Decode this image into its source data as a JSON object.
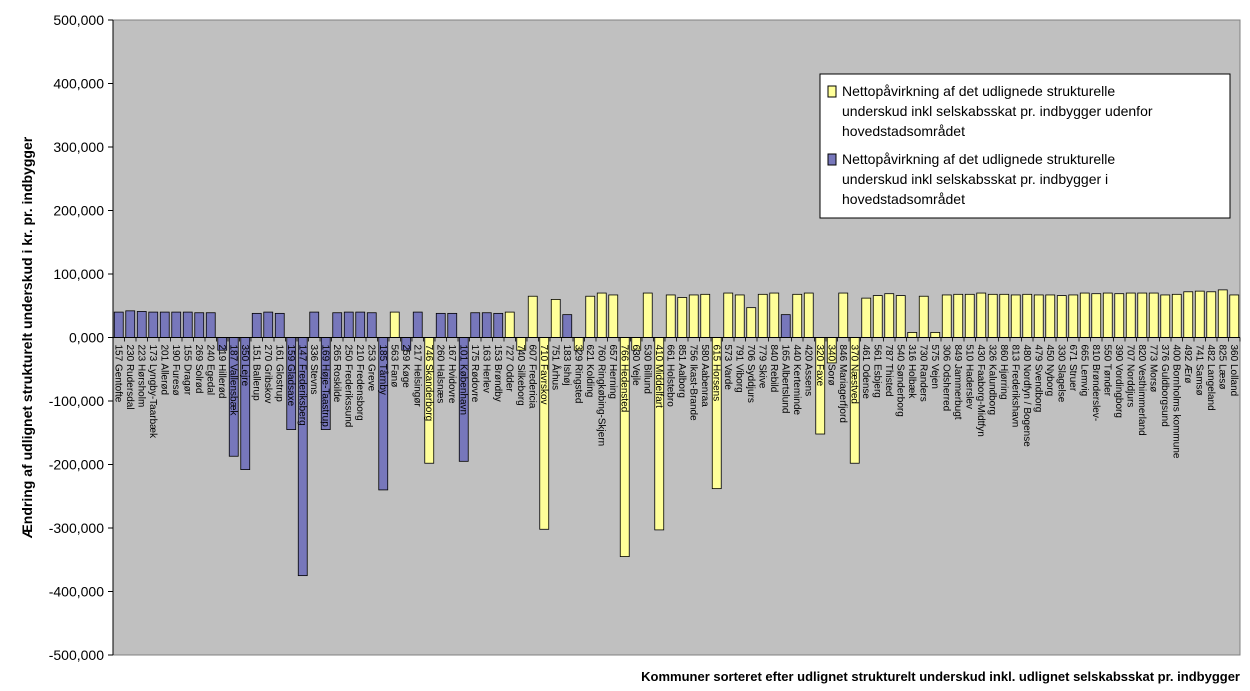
{
  "chart_data": {
    "type": "bar",
    "xlabel": "Kommuner sorteret efter udlignet strukturelt underskud inkl. udlignet selskabsskat pr. indbygger",
    "ylabel": "Ændring af udlignet strukturelt underskud i kr. pr. indbygger",
    "ylim": [
      -500000,
      500000
    ],
    "yticks": [
      -500000,
      -400000,
      -300000,
      -200000,
      -100000,
      0,
      100000,
      200000,
      300000,
      400000,
      500000
    ],
    "ytick_labels": [
      "-500,000",
      "-400,000",
      "-300,000",
      "-200,000",
      "-100,000",
      "0,000",
      "100,000",
      "200,000",
      "300,000",
      "400,000",
      "500,000"
    ],
    "grid": false,
    "legend_position": "right",
    "colors": {
      "plot_bg": "#c0c0c0",
      "outside": "#ffff99",
      "inside": "#7777bb",
      "border": "#000000"
    },
    "series": [
      {
        "name": "Nettopåvirkning af det udlignede strukturelle underskud inkl selskabsskat pr. indbygger udenfor hovedstadsområdet",
        "key": "outside"
      },
      {
        "name": "Nettopåvirkning af det udlignede strukturelle underskud inkl selskabsskat pr. indbygger i hovedstadsområdet",
        "key": "inside"
      }
    ],
    "categories": [
      "157 Gentofte",
      "230 Rudersdal",
      "223 Hørsholm",
      "173 Lyngby-Taarbæk",
      "201 Allerød",
      "190 Furesø",
      "155 Dragør",
      "269 Solrød",
      "240 Egedal",
      "219 Hillerød",
      "187 Vallensbæk",
      "350 Lejre",
      "151 Ballerup",
      "270 Gribskov",
      "161 Glostrup",
      "159 Gladsaxe",
      "147 Frederiksberg",
      "336 Stevns",
      "169 Høje-Taastrup",
      "265 Roskilde",
      "250 Frederikssund",
      "210 Fredensborg",
      "253 Greve",
      "185 Tårnby",
      "563 Fanø",
      "259 Køge",
      "217 Helsingør",
      "746 Skanderborg",
      "260 Halsnæs",
      "167 Hvidovre",
      "101 København",
      "175 Rødovre",
      "163 Herlev",
      "153 Brøndby",
      "727 Odder",
      "740 Silkeborg",
      "607 Fredericia",
      "710 Favrskov",
      "751 Århus",
      "183 Ishøj",
      "329 Ringsted",
      "621 Kolding",
      "760 Ringkøbing-Skjern",
      "657 Herning",
      "766 Hedensted",
      "630 Vejle",
      "530 Billund",
      "410 Middelfart",
      "661 Holstebro",
      "851 Aalborg",
      "756 Ikast-Brande",
      "580 Aabenraa",
      "615 Horsens",
      "573 Varde",
      "791 Viborg",
      "706 Syddjurs",
      "779 Skive",
      "840 Rebild",
      "165 Albertslund",
      "440 Kerteminde",
      "420 Assens",
      "320 Faxe",
      "340 Sorø",
      "846 Mariagerfjord",
      "370 Næstved",
      "461 Odense",
      "561 Esbjerg",
      "787 Thisted",
      "540 Sønderborg",
      "316 Holbæk",
      "730 Randers",
      "575 Vejen",
      "306 Odsherred",
      "849 Jammerbugt",
      "510 Haderslev",
      "430 Faaborg-Midtfyn",
      "326 Kalundborg",
      "860 Hjørring",
      "813 Frederikshavn",
      "480 Nordfyn",
      "479 Svendborg",
      "450 Nyborg",
      "330 Slagelse",
      "671 Struer",
      "665 Lemvig",
      "810 Brønderslev",
      "550 Tønder",
      "390 Vordingborg",
      "707 Norddjurs",
      "820 Vesthimmerland",
      "773 Morsø",
      "376 Guldborgsund",
      "400 Bornholms kommune",
      "492 Ærø",
      "741 Samsø",
      "482 Langeland",
      "825 Læsø",
      "360 Lolland"
    ],
    "category_display": [
      "157 Gentofte",
      "230 Rudersdal",
      "223 Hørsholm",
      "173 Lyngby-Taarbæk",
      "201 Allerød",
      "190 Furesø",
      "155 Dragør",
      "269 Solrød",
      "240 Egedal",
      "219 Hillerød",
      "187 Vallensbæk",
      "350 Lejre",
      "151 Ballerup",
      "270 Gribskov",
      "161 Glostrup",
      "159 Gladsaxe",
      "147 Frederiksberg",
      "336 Stevns",
      "169 Høje-Taastrup",
      "265 Roskilde",
      "250 Frederikssund",
      "210 Fredensborg",
      "253 Greve",
      "185 Tårnby",
      "563 Fanø",
      "259 Køge",
      "217 Helsingør",
      "746 Skanderborg",
      "260 Halsnæs",
      "167 Hvidovre",
      "101 København",
      "175 Rødovre",
      "163 Herlev",
      "153 Brøndby",
      "727 Odder",
      "740 Silkeborg",
      "607 Fredericia",
      "710 Favrskov",
      "751 Århus",
      "183 Ishøj",
      "329 Ringsted",
      "621 Kolding",
      "760 Ringkøbing-Skjern",
      "657 Herning",
      "766 Hedensted",
      "630 Vejle",
      "530 Billund",
      "410 Middelfart",
      "661 Holstebro",
      "851 Aalborg",
      "756 Ikast-Brande",
      "580 Aabenraa",
      "615 Horsens",
      "573 Varde",
      "791 Viborg",
      "706 Syddjurs",
      "779 Skive",
      "840 Rebild",
      "165 Albertslund",
      "440 Kerteminde",
      "420 Assens",
      "320 Faxe",
      "340 Sorø",
      "846 Mariagerfjord",
      "370 Næstved",
      "461 Odense",
      "561 Esbjerg",
      "787 Thisted",
      "540 Sønderborg",
      "316 Holbæk",
      "730 Randers",
      "575 Vejen",
      "306 Odsherred",
      "849 Jammerbugt",
      "510 Haderslev",
      "430 Faaborg-Midtfyn",
      "326 Kalundborg",
      "860 Hjørring",
      "813 Frederikshavn",
      "480 Nordfyn / Bogense",
      "479 Svendborg",
      "450 Nyborg",
      "330 Slagelse",
      "671 Struer",
      "665 Lemvig",
      "810 Brønderslev-",
      "550 Tønder",
      "390 Vordingborg",
      "707 Norddjurs",
      "820 Vesthimmerland",
      "773 Morsø",
      "376 Guldborgsund",
      "400 Bornholms kommune",
      "492 Ærø",
      "741 Samsø",
      "482 Langeland",
      "825 Læsø",
      "360 Lolland"
    ],
    "groups": [
      "inside",
      "inside",
      "inside",
      "inside",
      "inside",
      "inside",
      "inside",
      "inside",
      "inside",
      "inside",
      "inside",
      "inside",
      "inside",
      "inside",
      "inside",
      "inside",
      "inside",
      "inside",
      "inside",
      "inside",
      "inside",
      "inside",
      "inside",
      "inside",
      "outside",
      "inside",
      "inside",
      "outside",
      "inside",
      "inside",
      "inside",
      "inside",
      "inside",
      "inside",
      "outside",
      "outside",
      "outside",
      "outside",
      "outside",
      "inside",
      "outside",
      "outside",
      "outside",
      "outside",
      "outside",
      "outside",
      "outside",
      "outside",
      "outside",
      "outside",
      "outside",
      "outside",
      "outside",
      "outside",
      "outside",
      "outside",
      "outside",
      "outside",
      "inside",
      "outside",
      "outside",
      "outside",
      "outside",
      "outside",
      "outside",
      "outside",
      "outside",
      "outside",
      "outside",
      "outside",
      "outside",
      "outside",
      "outside",
      "outside",
      "outside",
      "outside",
      "outside",
      "outside",
      "outside",
      "outside",
      "outside",
      "outside",
      "outside",
      "outside",
      "outside",
      "outside",
      "outside",
      "outside",
      "outside",
      "outside",
      "outside",
      "outside",
      "outside",
      "outside",
      "outside",
      "outside",
      "outside",
      "outside"
    ],
    "values": [
      40000,
      42000,
      41000,
      40000,
      40000,
      40000,
      40000,
      39000,
      39000,
      -20000,
      -187000,
      -208000,
      38000,
      40000,
      38000,
      -145000,
      -375000,
      40000,
      -145000,
      39000,
      40000,
      40000,
      39000,
      -240000,
      40000,
      -20000,
      40000,
      -198000,
      38000,
      38000,
      -195000,
      39000,
      39000,
      38000,
      40000,
      -20000,
      65000,
      -302000,
      60000,
      36000,
      -20000,
      65000,
      70000,
      67000,
      -345000,
      -20000,
      70000,
      -303000,
      67000,
      63000,
      67000,
      68000,
      -238000,
      70000,
      67000,
      47000,
      68000,
      70000,
      36000,
      68000,
      70000,
      -152000,
      -40000,
      70000,
      -198000,
      62000,
      66000,
      69000,
      66000,
      8000,
      65000,
      8000,
      67000,
      68000,
      68000,
      70000,
      68000,
      68000,
      67000,
      68000,
      67000,
      67000,
      66000,
      67000,
      70000,
      69000,
      70000,
      69000,
      70000,
      70000,
      70000,
      67000,
      68000,
      72000,
      73000,
      72000,
      75000,
      67000
    ]
  }
}
